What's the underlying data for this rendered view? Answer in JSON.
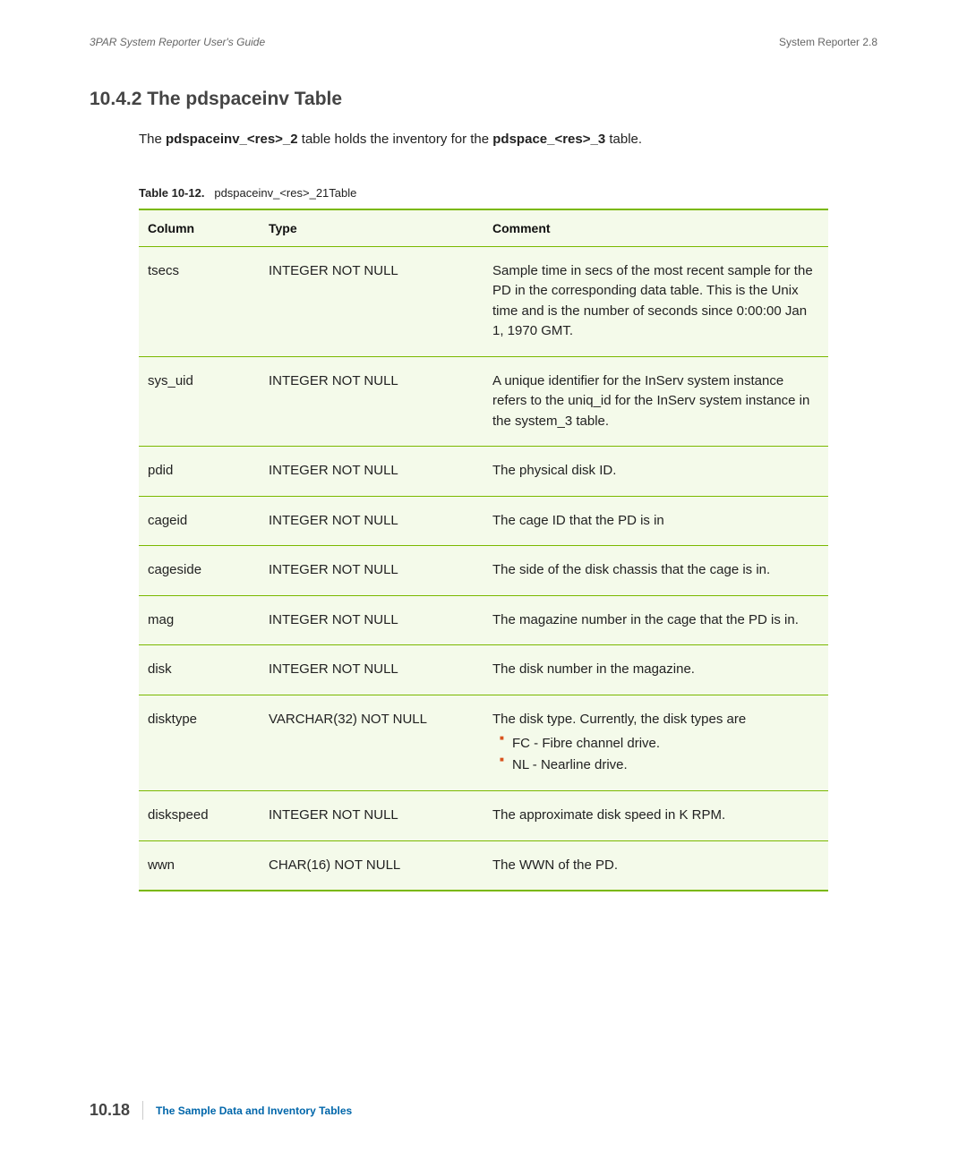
{
  "header": {
    "left": "3PAR System Reporter User's Guide",
    "right": "System Reporter 2.8"
  },
  "section": {
    "number": "10.4.2",
    "title": "The pdspaceinv Table"
  },
  "intro": {
    "prefix": "The ",
    "bold1": "pdspaceinv_<res>_2",
    "mid": " table holds the inventory for the ",
    "bold2": "pdspace_<res>_3",
    "suffix": " table."
  },
  "table_caption": {
    "label": "Table 10-12.",
    "text": "pdspaceinv_<res>_21Table"
  },
  "table": {
    "headers": {
      "c1": "Column",
      "c2": "Type",
      "c3": "Comment"
    },
    "rows": [
      {
        "col": "tsecs",
        "type": "INTEGER NOT NULL",
        "comment": "Sample time in secs of the most recent sample for the PD in the corresponding data table. This is the Unix time and is the number of seconds since 0:00:00 Jan 1, 1970 GMT.",
        "bullets": []
      },
      {
        "col": "sys_uid",
        "type": "INTEGER NOT NULL",
        "comment": "A unique identifier for the InServ system instance refers to the uniq_id for the InServ system instance in the system_3 table.",
        "bullets": []
      },
      {
        "col": "pdid",
        "type": "INTEGER NOT NULL",
        "comment": "The physical disk ID.",
        "bullets": []
      },
      {
        "col": "cageid",
        "type": "INTEGER NOT NULL",
        "comment": "The cage ID that the PD is in",
        "bullets": []
      },
      {
        "col": "cageside",
        "type": "INTEGER NOT NULL",
        "comment": "The side of the disk chassis that the cage is in.",
        "bullets": []
      },
      {
        "col": "mag",
        "type": "INTEGER NOT NULL",
        "comment": "The magazine number in the cage that the PD is in.",
        "bullets": []
      },
      {
        "col": "disk",
        "type": "INTEGER NOT NULL",
        "comment": "The disk number in the magazine.",
        "bullets": []
      },
      {
        "col": "disktype",
        "type": "VARCHAR(32) NOT NULL",
        "comment": "The disk type. Currently, the disk types are",
        "bullets": [
          "FC - Fibre channel drive.",
          "NL - Nearline drive."
        ]
      },
      {
        "col": "diskspeed",
        "type": "INTEGER NOT NULL",
        "comment": "The approximate disk speed in K RPM.",
        "bullets": []
      },
      {
        "col": "wwn",
        "type": "CHAR(16) NOT NULL",
        "comment": "The WWN of the PD.",
        "bullets": []
      }
    ]
  },
  "footer": {
    "pagenum": "10.18",
    "chapter": "The Sample Data and Inventory Tables"
  },
  "style": {
    "accent_color": "#7ab800",
    "row_bg": "#f4faea",
    "bullet_color": "#d9531e",
    "link_color": "#0066aa"
  }
}
